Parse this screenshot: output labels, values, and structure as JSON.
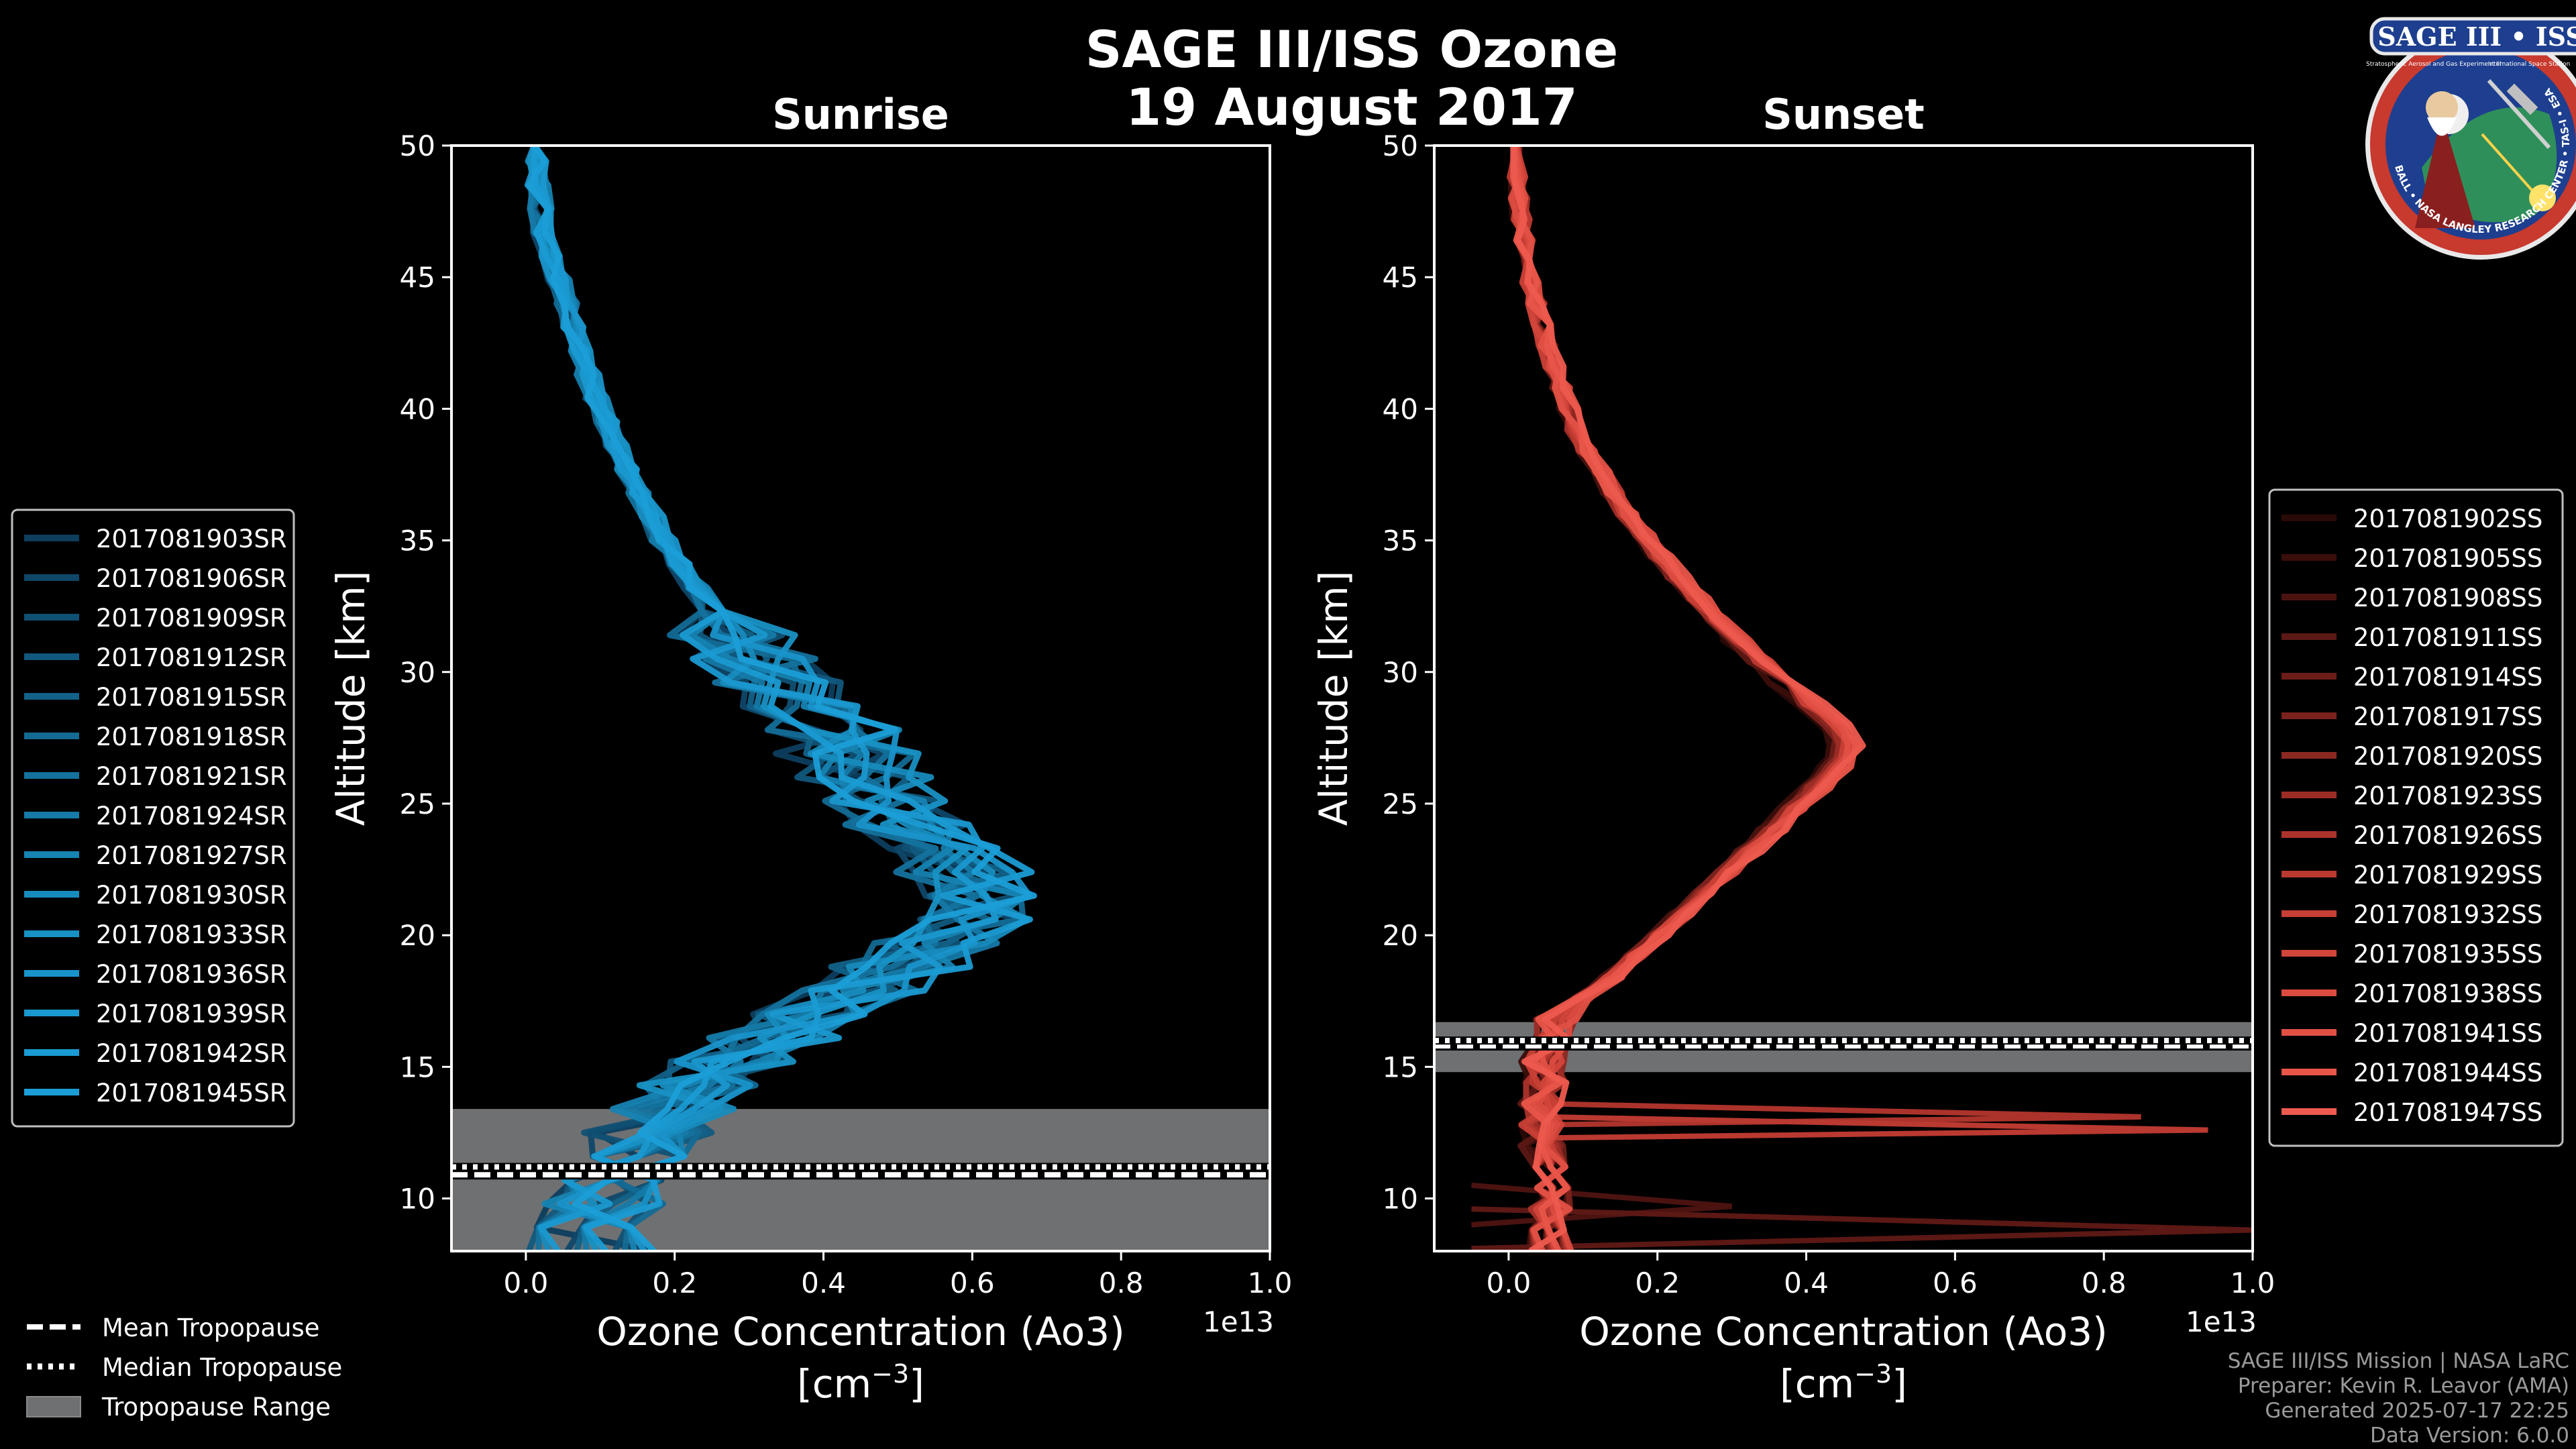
{
  "figure": {
    "title_line1": "SAGE III/ISS Ozone",
    "title_line2": "19 August 2017",
    "logo": {
      "text": "SAGE III • ISS",
      "ring_text": "BALL • NASA LANGLEY RESEARCH CENTER • TAS-I • ESA",
      "small_text_left": "Stratospheric Aerosol and Gas Experiment III",
      "small_text_right": "International Space Station"
    },
    "credits": [
      "SAGE III/ISS Mission | NASA LaRC",
      "Preparer: Kevin R. Leavor (AMA)",
      "Generated 2025-07-17 22:25",
      "Data Version: 6.0.0"
    ],
    "tropopause_legend": [
      {
        "label": "Mean Tropopause",
        "style": "dashed"
      },
      {
        "label": "Median Tropopause",
        "style": "dotted"
      },
      {
        "label": "Tropopause Range",
        "style": "patch"
      }
    ],
    "colors": {
      "background": "#000000",
      "axis": "#ffffff",
      "range_fill": "#6e7072",
      "sunrise": "#1b8fd0",
      "sunset": "#e8574a"
    }
  },
  "chart_data": [
    {
      "type": "line",
      "panel": "sunrise",
      "title": "Sunrise",
      "xlabel": "Ozone Concentration (Ao3)",
      "xunits_base": "[cm",
      "xunits_exp": "−3",
      "xunits_close": "]",
      "ylabel": "Altitude [km]",
      "x_scale_label": "1e13",
      "xlim": [
        -0.1,
        1.0
      ],
      "ylim": [
        8,
        50
      ],
      "xticks": [
        0.0,
        0.2,
        0.4,
        0.6,
        0.8,
        1.0
      ],
      "xtick_labels": [
        "0.0",
        "0.2",
        "0.4",
        "0.6",
        "0.8",
        "1.0"
      ],
      "yticks": [
        10,
        15,
        20,
        25,
        30,
        35,
        40,
        45,
        50
      ],
      "ytick_labels": [
        "10",
        "15",
        "20",
        "25",
        "30",
        "35",
        "40",
        "45",
        "50"
      ],
      "tropopause": {
        "mean": 10.9,
        "median": 11.2,
        "range": [
          8.0,
          13.4
        ]
      },
      "legend": {
        "placement": "left"
      },
      "series": [
        {
          "name": "2017081903SR",
          "color": "#0d3e5e"
        },
        {
          "name": "2017081906SR",
          "color": "#0f4769"
        },
        {
          "name": "2017081909SR",
          "color": "#105073"
        },
        {
          "name": "2017081912SR",
          "color": "#11587e"
        },
        {
          "name": "2017081915SR",
          "color": "#126188"
        },
        {
          "name": "2017081918SR",
          "color": "#136a93"
        },
        {
          "name": "2017081921SR",
          "color": "#14729d"
        },
        {
          "name": "2017081924SR",
          "color": "#157aa8"
        },
        {
          "name": "2017081927SR",
          "color": "#1683b2"
        },
        {
          "name": "2017081930SR",
          "color": "#178bbd"
        },
        {
          "name": "2017081933SR",
          "color": "#1891c4"
        },
        {
          "name": "2017081936SR",
          "color": "#1994ca"
        },
        {
          "name": "2017081939SR",
          "color": "#1a98cf"
        },
        {
          "name": "2017081942SR",
          "color": "#1a9bd3"
        },
        {
          "name": "2017081945SR",
          "color": "#1b9ed7"
        }
      ]
    },
    {
      "type": "line",
      "panel": "sunset",
      "title": "Sunset",
      "xlabel": "Ozone Concentration (Ao3)",
      "xunits_base": "[cm",
      "xunits_exp": "−3",
      "xunits_close": "]",
      "ylabel": "Altitude [km]",
      "x_scale_label": "1e13",
      "xlim": [
        -0.1,
        1.0
      ],
      "ylim": [
        8,
        50
      ],
      "xticks": [
        0.0,
        0.2,
        0.4,
        0.6,
        0.8,
        1.0
      ],
      "xtick_labels": [
        "0.0",
        "0.2",
        "0.4",
        "0.6",
        "0.8",
        "1.0"
      ],
      "yticks": [
        10,
        15,
        20,
        25,
        30,
        35,
        40,
        45,
        50
      ],
      "ytick_labels": [
        "10",
        "15",
        "20",
        "25",
        "30",
        "35",
        "40",
        "45",
        "50"
      ],
      "tropopause": {
        "mean": 15.8,
        "median": 16.0,
        "range": [
          14.8,
          16.7
        ]
      },
      "legend": {
        "placement": "right"
      },
      "series": [
        {
          "name": "2017081902SS",
          "color": "#2a0a07"
        },
        {
          "name": "2017081905SS",
          "color": "#3a0e0b"
        },
        {
          "name": "2017081908SS",
          "color": "#4a1310"
        },
        {
          "name": "2017081911SS",
          "color": "#5b1814"
        },
        {
          "name": "2017081914SS",
          "color": "#6c1d18"
        },
        {
          "name": "2017081917SS",
          "color": "#7c221d"
        },
        {
          "name": "2017081920SS",
          "color": "#8c2822"
        },
        {
          "name": "2017081923SS",
          "color": "#9c2d26"
        },
        {
          "name": "2017081926SS",
          "color": "#ab332b"
        },
        {
          "name": "2017081929SS",
          "color": "#ba3930"
        },
        {
          "name": "2017081932SS",
          "color": "#c73f35"
        },
        {
          "name": "2017081935SS",
          "color": "#d2453a"
        },
        {
          "name": "2017081938SS",
          "color": "#db4b3f"
        },
        {
          "name": "2017081941SS",
          "color": "#e25044"
        },
        {
          "name": "2017081944SS",
          "color": "#e85549"
        },
        {
          "name": "2017081947SS",
          "color": "#ee5a4e"
        }
      ]
    }
  ]
}
